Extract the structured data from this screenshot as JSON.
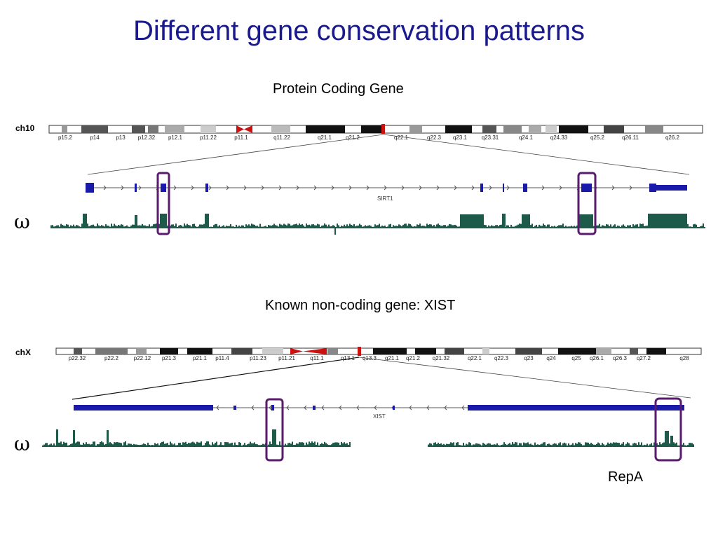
{
  "title": "Different gene conservation patterns",
  "panels": [
    {
      "subtitle": "Protein Coding Gene",
      "chromosome": "ch10",
      "gene": "SIRT1",
      "score_symbol": "ω",
      "bands": [
        "p15.2",
        "p14",
        "p13",
        "p12.32",
        "p12.1",
        "p11.22",
        "p11.1",
        "q11.22",
        "q21.1",
        "q21.2",
        "q22.1",
        "q22.3",
        "q23.1",
        "q23.31",
        "q24.1",
        "q24.33",
        "q25.2",
        "q26.11",
        "q26.2"
      ]
    },
    {
      "subtitle": "Known non-coding gene: XIST",
      "chromosome": "chX",
      "gene": "XIST",
      "score_symbol": "ω",
      "bands": [
        "p22.32",
        "p22.2",
        "p22.12",
        "p21.3",
        "p21.1",
        "p11.4",
        "p11.23",
        "p11.21",
        "q11.1",
        "q13.1",
        "q13.3",
        "q21.1",
        "q21.2",
        "q21.32",
        "q22.1",
        "q22.3",
        "q23",
        "q24",
        "q25",
        "q26.1",
        "q26.3",
        "q27.2",
        "q28"
      ],
      "annotation": "RepA"
    }
  ],
  "colors": {
    "title": "#1a1a8c",
    "conservation": "#1e5a4a",
    "gene_model": "#1a1aaa",
    "highlight_box": "#5a1a6e",
    "centromere": "#cc1111"
  }
}
